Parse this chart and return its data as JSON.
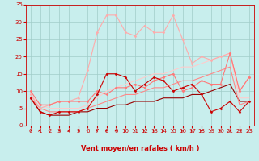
{
  "xlabel": "Vent moyen/en rafales ( km/h )",
  "bg_color": "#c8eeed",
  "grid_color": "#a0ccc8",
  "x": [
    0,
    1,
    2,
    3,
    4,
    5,
    6,
    7,
    8,
    9,
    10,
    11,
    12,
    13,
    14,
    15,
    16,
    17,
    18,
    19,
    20,
    21,
    22,
    23
  ],
  "series": [
    {
      "y": [
        8,
        4,
        3,
        4,
        4,
        4,
        5,
        9,
        15,
        15,
        14,
        10,
        12,
        14,
        13,
        10,
        11,
        12,
        9,
        4,
        5,
        7,
        4,
        7
      ],
      "color": "#cc0000",
      "lw": 0.8,
      "marker": "D",
      "ms": 1.5,
      "zorder": 5,
      "linestyle": "-"
    },
    {
      "y": [
        10,
        6,
        6,
        7,
        7,
        7,
        7,
        10,
        9,
        11,
        11,
        12,
        11,
        13,
        14,
        15,
        10,
        11,
        13,
        12,
        12,
        21,
        10,
        14
      ],
      "color": "#ff7777",
      "lw": 0.8,
      "marker": "D",
      "ms": 1.5,
      "zorder": 4,
      "linestyle": "-"
    },
    {
      "y": [
        9,
        5,
        6,
        7,
        7,
        8,
        16,
        27,
        32,
        32,
        27,
        26,
        29,
        27,
        27,
        32,
        25,
        18,
        20,
        19,
        20,
        21,
        10,
        14
      ],
      "color": "#ffaaaa",
      "lw": 0.8,
      "marker": "D",
      "ms": 1.5,
      "zorder": 3,
      "linestyle": "-"
    },
    {
      "y": [
        8,
        4,
        3,
        3,
        3,
        4,
        4,
        5,
        5,
        6,
        6,
        7,
        7,
        7,
        8,
        8,
        8,
        9,
        9,
        10,
        11,
        12,
        7,
        7
      ],
      "color": "#990000",
      "lw": 0.8,
      "marker": null,
      "ms": 0,
      "zorder": 2,
      "linestyle": "-"
    },
    {
      "y": [
        8,
        5,
        4,
        4,
        4,
        4,
        5,
        6,
        7,
        8,
        9,
        9,
        10,
        11,
        11,
        12,
        13,
        13,
        14,
        15,
        16,
        17,
        6,
        7
      ],
      "color": "#ff8888",
      "lw": 0.8,
      "marker": null,
      "ms": 0,
      "zorder": 2,
      "linestyle": "-"
    },
    {
      "y": [
        9,
        6,
        5,
        5,
        5,
        5,
        6,
        8,
        10,
        11,
        12,
        13,
        14,
        15,
        15,
        16,
        17,
        17,
        18,
        19,
        20,
        21,
        8,
        8
      ],
      "color": "#ffcccc",
      "lw": 0.8,
      "marker": null,
      "ms": 0,
      "zorder": 2,
      "linestyle": "-"
    }
  ],
  "ylim": [
    0,
    35
  ],
  "xlim": [
    -0.5,
    23.5
  ],
  "yticks": [
    0,
    5,
    10,
    15,
    20,
    25,
    30,
    35
  ],
  "xticks": [
    0,
    1,
    2,
    3,
    4,
    5,
    6,
    7,
    8,
    9,
    10,
    11,
    12,
    13,
    14,
    15,
    16,
    17,
    18,
    19,
    20,
    21,
    22,
    23
  ],
  "tick_color": "#cc0000",
  "label_color": "#cc0000",
  "xlabel_fontsize": 6,
  "tick_fontsize": 5,
  "arrow_angles": [
    45,
    90,
    225,
    200,
    200,
    200,
    225,
    315,
    315,
    315,
    315,
    315,
    315,
    315,
    315,
    315,
    315,
    315,
    315,
    315,
    315,
    180,
    270,
    225
  ]
}
